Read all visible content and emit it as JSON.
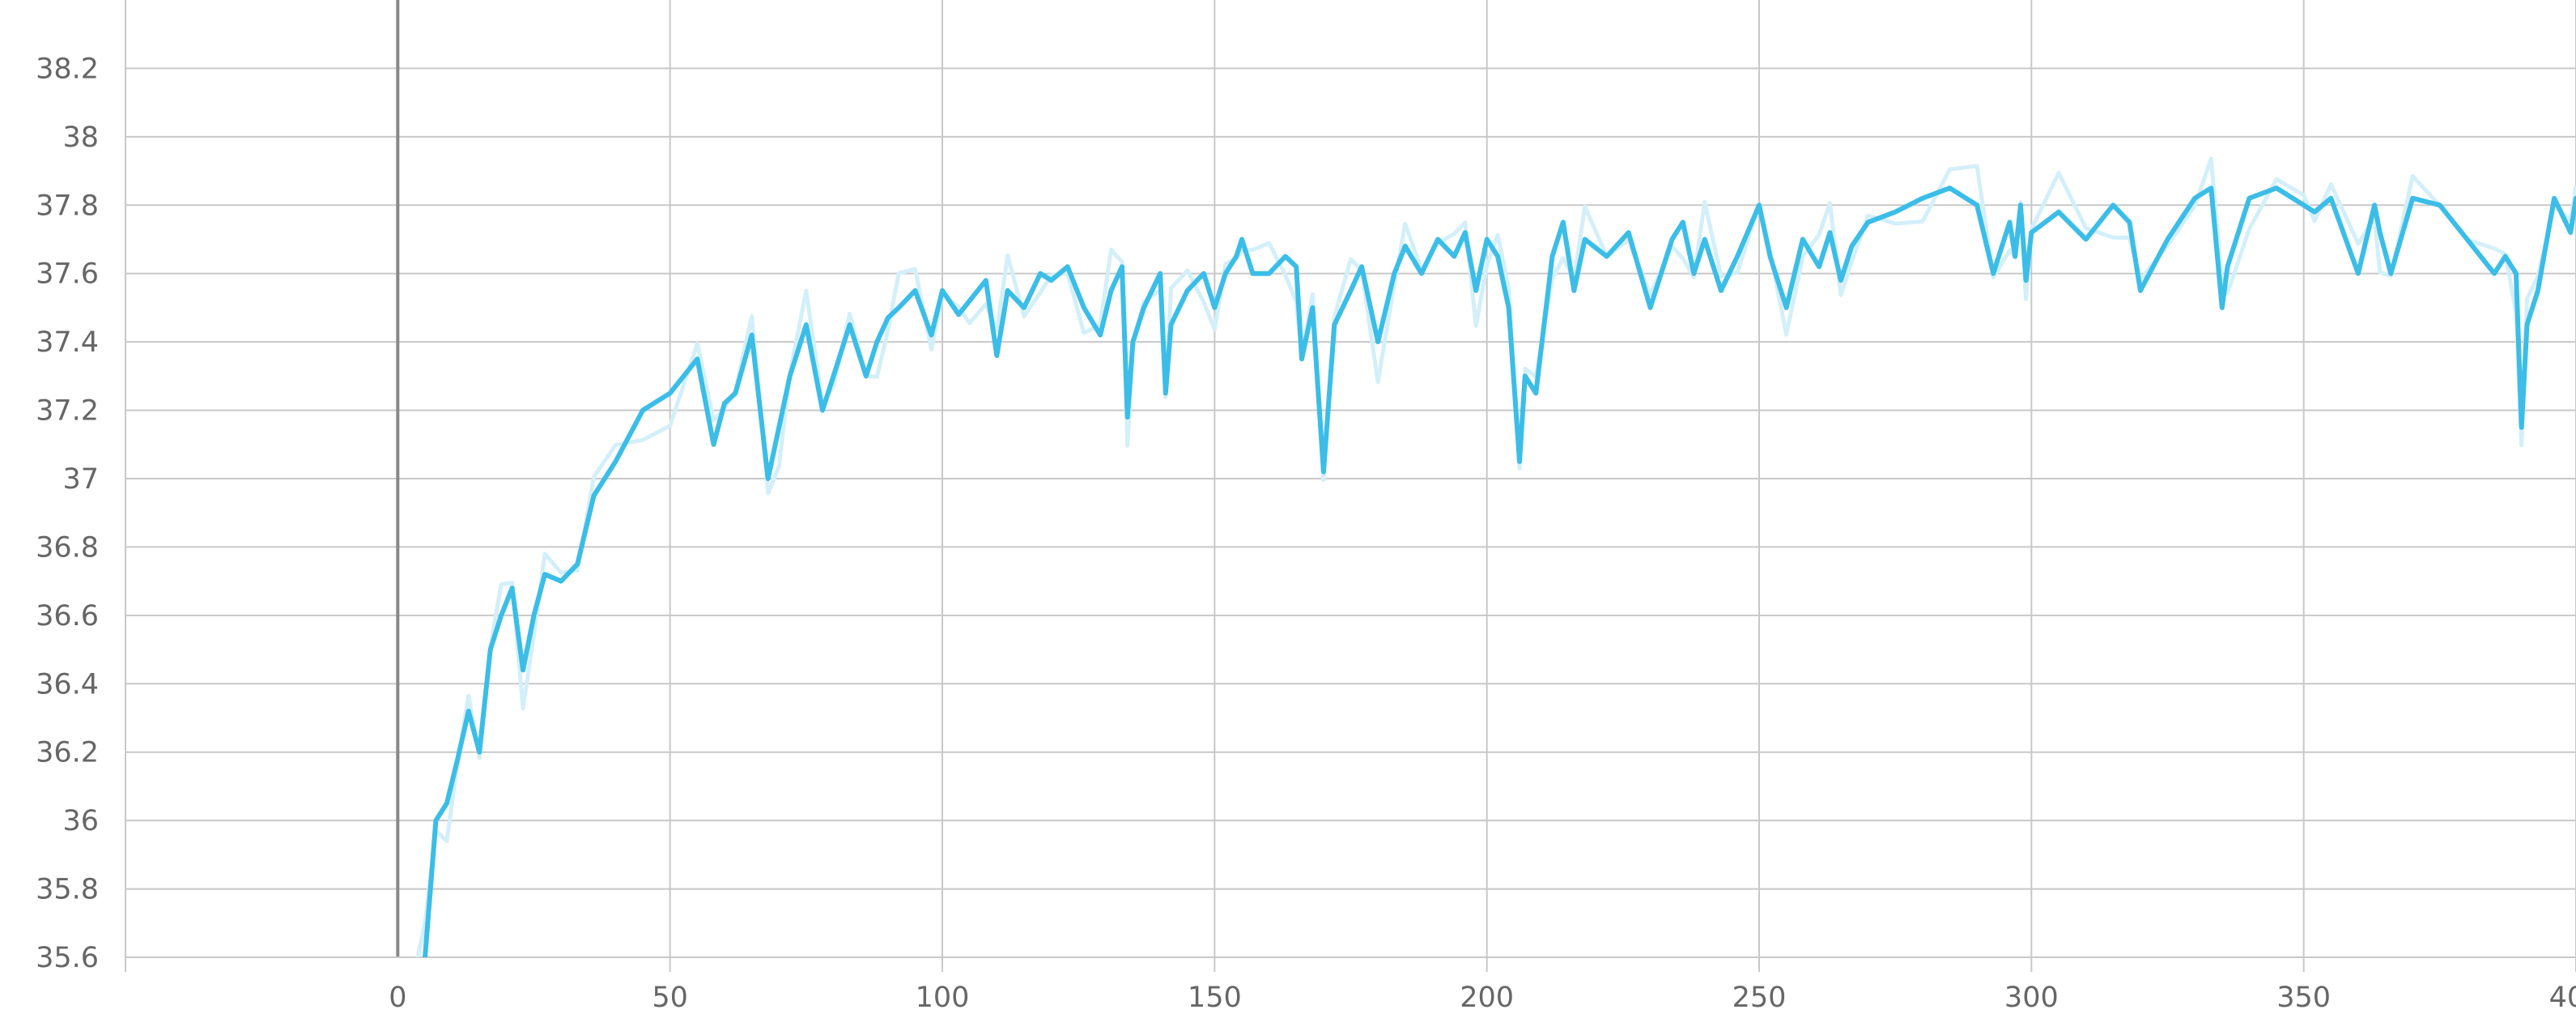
{
  "chart_data": {
    "type": "line",
    "title": "",
    "xlabel": "",
    "ylabel": "",
    "xlim": [
      -50,
      400
    ],
    "ylim": [
      35.6,
      38.4
    ],
    "grid": true,
    "x_ticks": [
      0,
      50,
      100,
      150,
      200,
      250,
      300,
      350,
      400
    ],
    "x_tick_labels": [
      "0",
      "50",
      "100",
      "150",
      "200",
      "250",
      "300",
      "350",
      "400"
    ],
    "y_ticks": [
      35.6,
      35.8,
      36,
      36.2,
      36.4,
      36.6,
      36.8,
      37,
      37.2,
      37.4,
      37.6,
      37.8,
      38,
      38.2
    ],
    "y_tick_labels": [
      "35.6",
      "35.8",
      "36",
      "36.2",
      "36.4",
      "36.6",
      "36.8",
      "37",
      "37.2",
      "37.4",
      "37.6",
      "37.8",
      "38",
      "38.2"
    ],
    "colors": {
      "smoothed": "#3bbde8",
      "raw": "#d3eff9",
      "grid": "#c8c8c8",
      "axis": "#888888",
      "tick_text": "#666666"
    },
    "series": [
      {
        "x": [
          3,
          5,
          7,
          9,
          11,
          13,
          15,
          17,
          19,
          21,
          23,
          25,
          27,
          30,
          33,
          36,
          40,
          45,
          50,
          55,
          58,
          60,
          62,
          65,
          68,
          70,
          72,
          75,
          78,
          80,
          83,
          86,
          88,
          90,
          92,
          95,
          98,
          100,
          103,
          105,
          108,
          110,
          112,
          115,
          118,
          120,
          123,
          126,
          129,
          131,
          133,
          134,
          135,
          137,
          140,
          141,
          142,
          145,
          148,
          150,
          152,
          154,
          155,
          157,
          160,
          163,
          165,
          166,
          168,
          170,
          172,
          175,
          177,
          180,
          183,
          185,
          188,
          191,
          194,
          196,
          198,
          200,
          202,
          204,
          206,
          207,
          209,
          212,
          214,
          216,
          218,
          222,
          226,
          230,
          234,
          236,
          238,
          240,
          243,
          246,
          250,
          252,
          255,
          258,
          261,
          263,
          265,
          267,
          270,
          275,
          280,
          285,
          290,
          293,
          296,
          297,
          298,
          299,
          300,
          305,
          310,
          315,
          318,
          320,
          325,
          330,
          333,
          335,
          336,
          340,
          345,
          350,
          352,
          355,
          360,
          363,
          364,
          366,
          370,
          375,
          380,
          385,
          387,
          389,
          390,
          391,
          393,
          396,
          399,
          400
        ],
        "values": [
          35.5,
          35.6,
          36.0,
          36.05,
          36.18,
          36.32,
          36.2,
          36.5,
          36.6,
          36.68,
          36.44,
          36.6,
          36.72,
          36.7,
          36.75,
          36.95,
          37.05,
          37.2,
          37.25,
          37.35,
          37.1,
          37.22,
          37.25,
          37.42,
          37.0,
          37.15,
          37.3,
          37.45,
          37.2,
          37.3,
          37.45,
          37.3,
          37.4,
          37.47,
          37.5,
          37.55,
          37.42,
          37.55,
          37.48,
          37.52,
          37.58,
          37.36,
          37.55,
          37.5,
          37.6,
          37.58,
          37.62,
          37.5,
          37.42,
          37.55,
          37.62,
          37.18,
          37.4,
          37.5,
          37.6,
          37.25,
          37.45,
          37.55,
          37.6,
          37.5,
          37.6,
          37.65,
          37.7,
          37.6,
          37.6,
          37.65,
          37.62,
          37.35,
          37.5,
          37.02,
          37.45,
          37.55,
          37.62,
          37.4,
          37.6,
          37.68,
          37.6,
          37.7,
          37.65,
          37.72,
          37.55,
          37.7,
          37.65,
          37.5,
          37.05,
          37.3,
          37.25,
          37.65,
          37.75,
          37.55,
          37.7,
          37.65,
          37.72,
          37.5,
          37.7,
          37.75,
          37.6,
          37.7,
          37.55,
          37.65,
          37.8,
          37.65,
          37.5,
          37.7,
          37.62,
          37.72,
          37.58,
          37.68,
          37.75,
          37.78,
          37.82,
          37.85,
          37.8,
          37.6,
          37.75,
          37.65,
          37.8,
          37.58,
          37.72,
          37.78,
          37.7,
          37.8,
          37.75,
          37.55,
          37.7,
          37.82,
          37.85,
          37.5,
          37.62,
          37.82,
          37.85,
          37.8,
          37.78,
          37.82,
          37.6,
          37.8,
          37.72,
          37.6,
          37.82,
          37.8,
          37.7,
          37.6,
          37.65,
          37.6,
          37.15,
          37.45,
          37.55,
          37.82,
          37.72,
          37.82
        ]
      }
    ]
  }
}
